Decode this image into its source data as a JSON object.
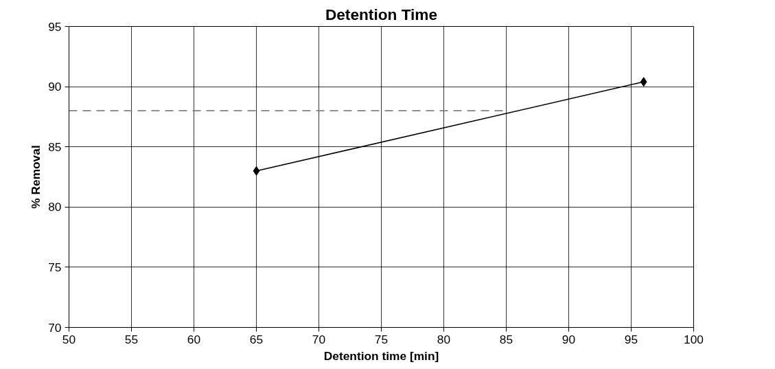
{
  "chart_data": {
    "type": "line",
    "title": "Detention Time",
    "xlabel": "Detention time [min]",
    "ylabel": "% Removal",
    "xlim": [
      50,
      100
    ],
    "xticks": [
      50,
      55,
      60,
      65,
      70,
      75,
      80,
      85,
      90,
      95,
      100
    ],
    "ylim": [
      70,
      95
    ],
    "yticks": [
      70,
      75,
      80,
      85,
      90,
      95
    ],
    "grid": true,
    "series": [
      {
        "x": [
          65,
          96
        ],
        "values": [
          83,
          90.4
        ],
        "color": "#000000",
        "marker": "diamond",
        "line_style": "solid"
      },
      {
        "x": [
          50,
          85
        ],
        "values": [
          88,
          88
        ],
        "color": "#808080",
        "marker": "none",
        "line_style": "dashed"
      }
    ]
  }
}
